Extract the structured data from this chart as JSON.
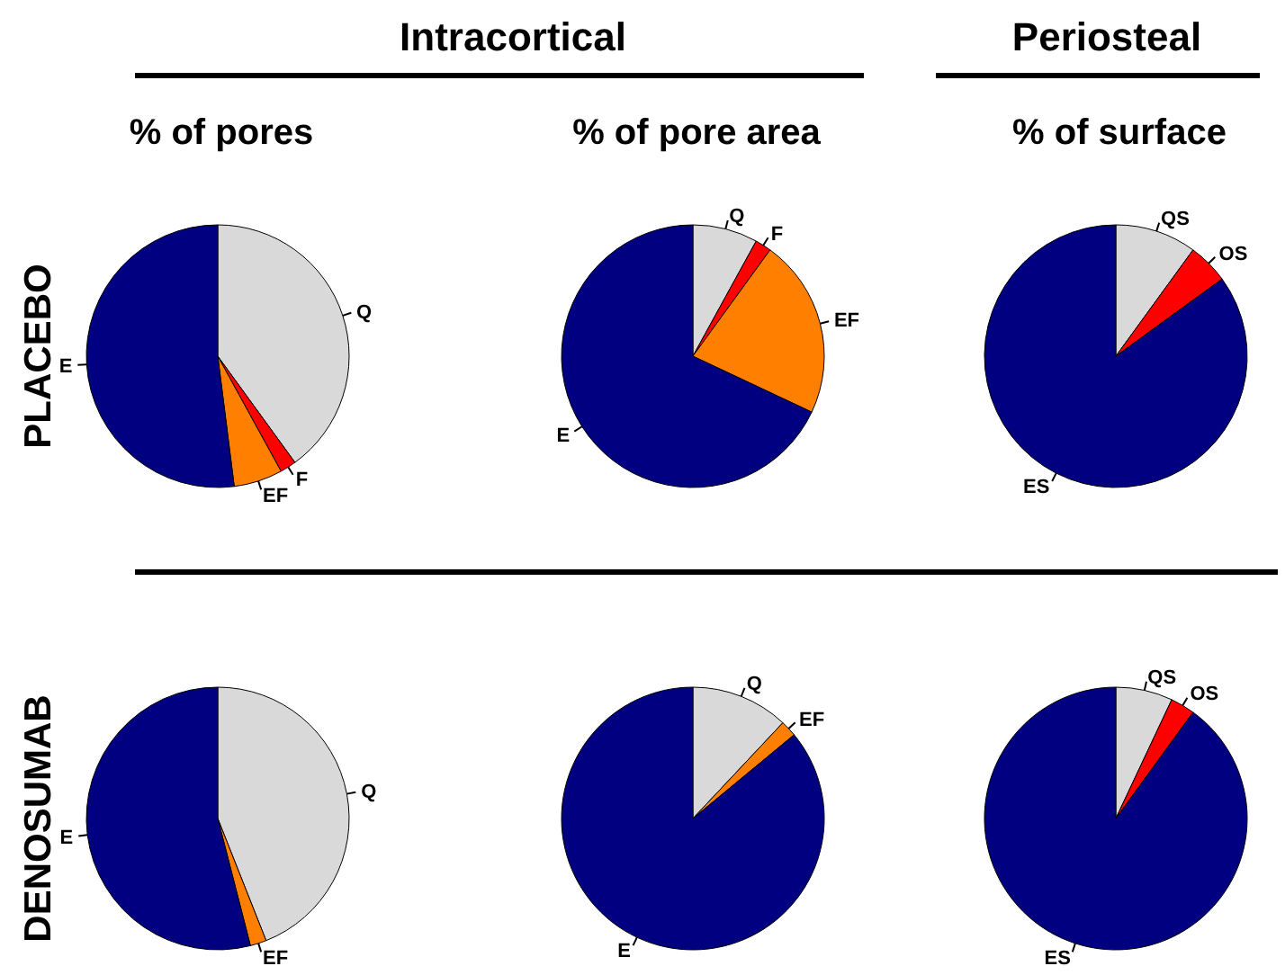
{
  "chart_data": [
    {
      "type": "pie",
      "title": "% of pores",
      "ylabel": "PLACEBO",
      "annotations": [
        "Intracortical"
      ],
      "categories": [
        "Q",
        "F",
        "EF",
        "E"
      ],
      "values": [
        40,
        2,
        6,
        52
      ],
      "colors": [
        "#d9d9d9",
        "#ff0000",
        "#ff8000",
        "#000080"
      ]
    },
    {
      "type": "pie",
      "title": "% of pore area",
      "categories": [
        "Q",
        "F",
        "EF",
        "E"
      ],
      "values": [
        8,
        2,
        22,
        68
      ],
      "colors": [
        "#d9d9d9",
        "#ff0000",
        "#ff8000",
        "#000080"
      ]
    },
    {
      "type": "pie",
      "title": "% of surface",
      "annotations": [
        "Periosteal"
      ],
      "categories": [
        "QS",
        "OS",
        "ES"
      ],
      "values": [
        10,
        5,
        85
      ],
      "colors": [
        "#d9d9d9",
        "#ff0000",
        "#000080"
      ]
    },
    {
      "type": "pie",
      "ylabel": "DENOSUMAB",
      "categories": [
        "Q",
        "EF",
        "E"
      ],
      "values": [
        44,
        2,
        54
      ],
      "colors": [
        "#d9d9d9",
        "#ff8000",
        "#000080"
      ]
    },
    {
      "type": "pie",
      "categories": [
        "Q",
        "EF",
        "E"
      ],
      "values": [
        12,
        2,
        86
      ],
      "colors": [
        "#d9d9d9",
        "#ff8000",
        "#000080"
      ]
    },
    {
      "type": "pie",
      "categories": [
        "QS",
        "OS",
        "ES"
      ],
      "values": [
        7,
        3,
        90
      ],
      "colors": [
        "#d9d9d9",
        "#ff0000",
        "#000080"
      ]
    }
  ]
}
